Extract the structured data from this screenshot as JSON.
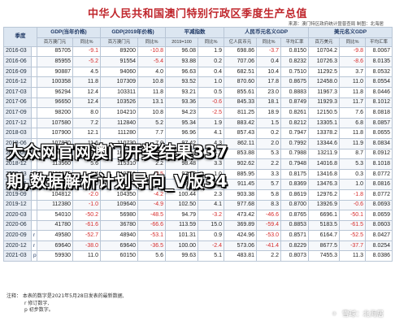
{
  "title": "中华人民共和国澳门特别行政区季度生产总值",
  "source": "来源：澳门特区政府统计暨普查局 制图：北海居",
  "header": {
    "quarter": "季度",
    "gdp_current": "GDP(当年价格)",
    "gdp_2019": "GDP(2019年价格)",
    "deflator": "平减指数",
    "rmb_gdp": "人民币元名义GDP",
    "usd_gdp": "美元名义GDP"
  },
  "subheader": [
    "百万澳门元",
    "同比%",
    "百万澳门元",
    "同比%",
    "2019=100",
    "同比%",
    "亿人民币元",
    "同比%",
    "平均汇率",
    "百万美元",
    "同比%",
    "平均汇率"
  ],
  "rows": [
    {
      "q": "2016-03",
      "f": "",
      "c": [
        "85705",
        "-9.1",
        "89200",
        "-10.8",
        "96.08",
        "1.9",
        "698.86",
        "-3.7",
        "0.8150",
        "10704.2",
        "-9.8",
        "8.0067"
      ]
    },
    {
      "q": "2016-06",
      "f": "",
      "c": [
        "85955",
        "-5.2",
        "91554",
        "-5.4",
        "93.88",
        "0.2",
        "707.06",
        "0.4",
        "0.8232",
        "10726.3",
        "-8.6",
        "8.0135"
      ]
    },
    {
      "q": "2016-09",
      "f": "",
      "c": [
        "90887",
        "4.5",
        "94060",
        "4.0",
        "96.63",
        "0.4",
        "682.51",
        "10.4",
        "0.7510",
        "11292.5",
        "3.7",
        "8.0532"
      ]
    },
    {
      "q": "2016-12",
      "f": "",
      "c": [
        "100358",
        "11.8",
        "107309",
        "10.8",
        "93.52",
        "1.0",
        "870.60",
        "17.8",
        "0.8675",
        "12458.0",
        "11.0",
        "8.0554"
      ]
    },
    {
      "q": "2017-03",
      "f": "",
      "c": [
        "96294",
        "12.4",
        "103311",
        "11.8",
        "93.21",
        "0.5",
        "855.61",
        "23.0",
        "0.8883",
        "11967.3",
        "11.8",
        "8.0446"
      ]
    },
    {
      "q": "2017-06",
      "f": "",
      "c": [
        "96650",
        "12.4",
        "103526",
        "13.1",
        "93.36",
        "-0.6",
        "845.33",
        "18.1",
        "0.8749",
        "11929.3",
        "11.7",
        "8.1012"
      ]
    },
    {
      "q": "2017-09",
      "f": "",
      "c": [
        "98200",
        "8.0",
        "104210",
        "10.8",
        "94.23",
        "-2.5",
        "811.25",
        "18.9",
        "0.8261",
        "12150.5",
        "7.6",
        "8.0818"
      ]
    },
    {
      "q": "2017-12",
      "f": "",
      "c": [
        "107580",
        "7.2",
        "112840",
        "5.2",
        "95.34",
        "1.9",
        "883.42",
        "1.5",
        "0.8212",
        "13305.1",
        "6.8",
        "8.0857"
      ]
    },
    {
      "q": "2018-03",
      "f": "",
      "c": [
        "107900",
        "12.1",
        "111280",
        "7.7",
        "96.96",
        "4.1",
        "857.43",
        "0.2",
        "0.7947",
        "13378.2",
        "11.8",
        "8.0655"
      ]
    },
    {
      "q": "2018-06",
      "f": "",
      "c": [
        "107870",
        "11.6",
        "110730",
        "7.0",
        "97.42",
        "4.3",
        "862.11",
        "2.0",
        "0.7992",
        "13344.6",
        "11.9",
        "8.0834"
      ]
    },
    {
      "q": "2018-09",
      "f": "",
      "c": [
        "106900",
        "8.9",
        "108930",
        "4.5",
        "98.14",
        "4.2",
        "853.88",
        "5.3",
        "0.7988",
        "13211.9",
        "8.7",
        "8.0912"
      ]
    },
    {
      "q": "2018-12",
      "f": "",
      "c": [
        "113560",
        "5.6",
        "115310",
        "2.2",
        "98.48",
        "3.3",
        "902.62",
        "2.2",
        "0.7948",
        "14016.8",
        "5.3",
        "8.1018"
      ]
    },
    {
      "q": "2019-03",
      "f": "",
      "c": [
        "108370",
        "0.4",
        "110710",
        "-0.5",
        "97.89",
        "1.0",
        "885.95",
        "3.3",
        "0.8175",
        "13416.8",
        "0.3",
        "8.0772"
      ]
    },
    {
      "q": "2019-06",
      "f": "",
      "c": [
        "108909",
        "1.0",
        "110275",
        "-0.4",
        "98.76",
        "1.4",
        "911.45",
        "5.7",
        "0.8369",
        "13476.3",
        "1.0",
        "8.0816"
      ]
    },
    {
      "q": "2019-09",
      "f": "",
      "c": [
        "104812",
        "-2.0",
        "104350",
        "-4.2",
        "100.44",
        "2.3",
        "903.38",
        "5.8",
        "0.8619",
        "12976.2",
        "-1.8",
        "8.0772"
      ]
    },
    {
      "q": "2019-12",
      "f": "",
      "c": [
        "112380",
        "-1.0",
        "109640",
        "-4.9",
        "102.50",
        "4.1",
        "977.68",
        "8.3",
        "0.8700",
        "13926.9",
        "-0.6",
        "8.0693"
      ]
    },
    {
      "q": "2020-03",
      "f": "",
      "c": [
        "54010",
        "-50.2",
        "56980",
        "-48.5",
        "94.79",
        "-3.2",
        "473.42",
        "-46.6",
        "0.8765",
        "6696.1",
        "-50.1",
        "8.0659"
      ]
    },
    {
      "q": "2020-06",
      "f": "",
      "c": [
        "41780",
        "-61.6",
        "36780",
        "-66.6",
        "113.59",
        "15.0",
        "369.89",
        "-59.4",
        "0.8853",
        "5183.5",
        "-61.5",
        "8.0603"
      ]
    },
    {
      "q": "2020-09",
      "f": "r",
      "c": [
        "49580",
        "-52.7",
        "48940",
        "-53.1",
        "101.31",
        "0.9",
        "424.96",
        "-53.0",
        "0.8571",
        "6164.7",
        "-52.5",
        "8.0427"
      ]
    },
    {
      "q": "2020-12",
      "f": "r",
      "c": [
        "69640",
        "-38.0",
        "69640",
        "-36.5",
        "100.00",
        "-2.4",
        "573.06",
        "-41.4",
        "0.8229",
        "8677.5",
        "-37.7",
        "8.0254"
      ]
    },
    {
      "q": "2021-03",
      "f": "p",
      "c": [
        "59930",
        "11.0",
        "60150",
        "5.6",
        "99.63",
        "5.1",
        "483.81",
        "2.2",
        "0.8073",
        "7455.3",
        "11.3",
        "8.0386"
      ]
    }
  ],
  "notes": [
    "注释：  本表的数字是2021年5月28日发表的最新数据,",
    "r  修订数字,",
    "p  初步数字。"
  ],
  "overlay": {
    "line1": "大众网官网澳门开奖结果337",
    "line2": "期,数据解析计划导向_V版34"
  },
  "watermark": {
    "icon": "snowball-icon",
    "text": "雪球：北海居"
  }
}
